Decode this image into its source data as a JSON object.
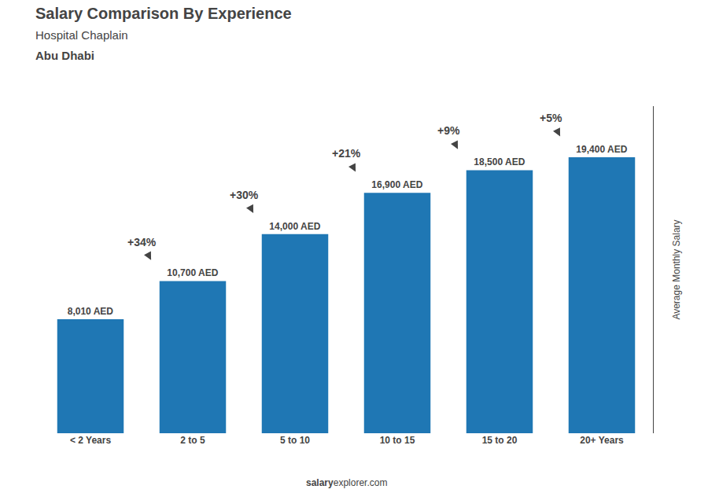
{
  "chart_data": {
    "type": "bar",
    "title": "Salary Comparison By Experience",
    "subtitle": [
      "Hospital Chaplain",
      "Abu Dhabi"
    ],
    "categories": [
      "< 2 Years",
      "2 to 5",
      "5 to 10",
      "10 to 15",
      "15 to 20",
      "20+ Years"
    ],
    "values": [
      8010,
      10700,
      14000,
      16900,
      18500,
      19400
    ],
    "value_labels": [
      "8,010 AED",
      "10,700 AED",
      "14,000 AED",
      "16,900 AED",
      "18,500 AED",
      "19,400 AED"
    ],
    "data_labels": true,
    "annotations": [
      "+34%",
      "+30%",
      "+21%",
      "+9%",
      "+5%"
    ],
    "ylabel": "Average Monthly Salary",
    "footer": [
      "salary",
      "explorer.com"
    ],
    "ylim": [
      0,
      23000
    ],
    "grid": false,
    "tick_labels": "x"
  }
}
